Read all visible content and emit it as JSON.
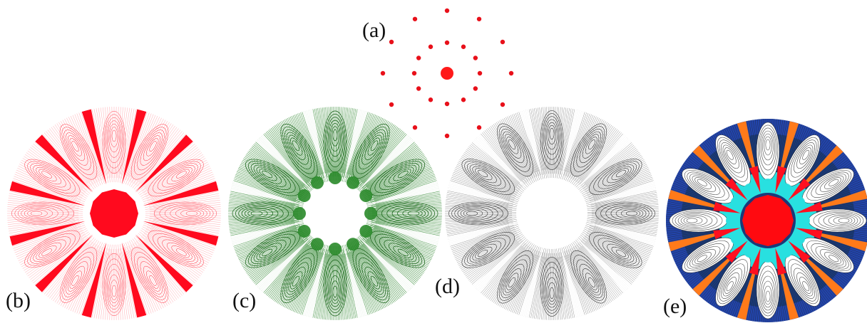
{
  "labels": {
    "a": "(a)",
    "b": "(b)",
    "c": "(c)",
    "d": "(d)",
    "e": "(e)"
  },
  "panel_a": {
    "center_color": "#ff1a1a",
    "inner_ring_points": 12,
    "outer_ring_points": 12,
    "point_color": "#e8101a"
  },
  "panels": [
    {
      "id": "b",
      "theme": "red",
      "colors": {
        "lines": "#ff2233",
        "fill": "#ff0a1e",
        "center": "#ff0a1e"
      }
    },
    {
      "id": "c",
      "theme": "green",
      "colors": {
        "lines": "#1a7a1a",
        "fill": "#2a8a2a",
        "center": "#ffffff"
      }
    },
    {
      "id": "d",
      "theme": "gray",
      "colors": {
        "lines": "#333333",
        "fill": "#555555",
        "center": "#ffffff"
      }
    },
    {
      "id": "e",
      "theme": "multi",
      "colors": {
        "outer": "#2244aa",
        "wedge": "#ff7a1a",
        "ring": "#28e0e0",
        "lines": "#222222",
        "center": "#ff0a10"
      }
    }
  ],
  "symmetry_order": 12
}
